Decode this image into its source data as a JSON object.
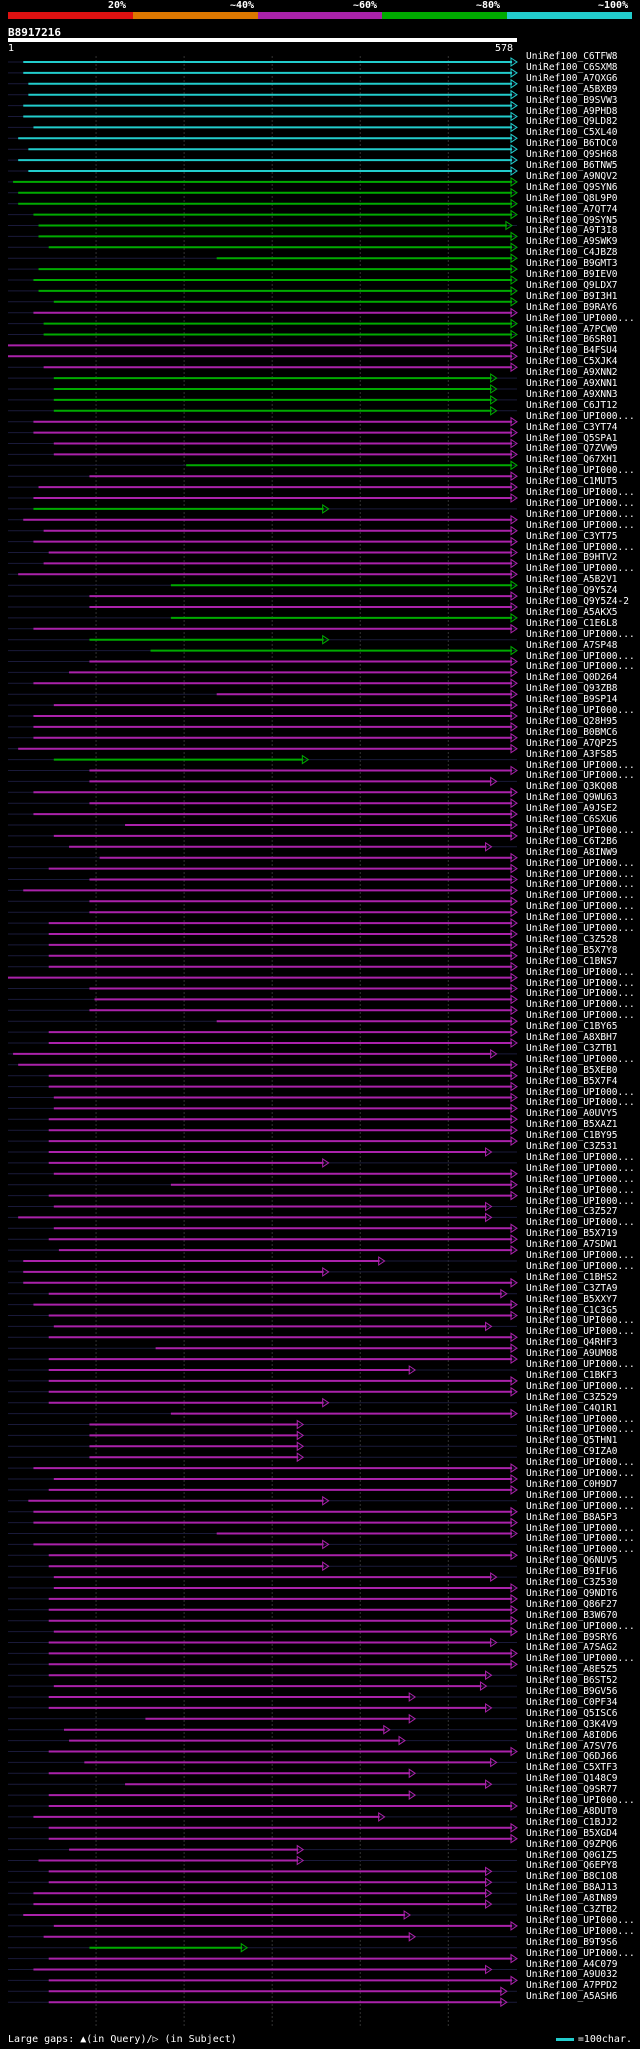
{
  "legend": {
    "labels": [
      "20%",
      "~40%",
      "~60%",
      "~80%",
      "~100%"
    ],
    "colors": [
      "#dd1111",
      "#dd7700",
      "#aa22aa",
      "#00aa00",
      "#22cccc"
    ]
  },
  "query": {
    "name": "B8917216",
    "start": "1",
    "end": "578"
  },
  "scale_len": 578,
  "footer": {
    "left": "Large gaps: ▲(in Query)/▷ (in Subject)",
    "right": "=100char."
  },
  "hit_colors": {
    "cyan": "#22cccc",
    "green": "#00aa00",
    "magenta": "#aa22aa"
  },
  "hits": [
    {
      "name": "UniRef100_C6TFW8",
      "c": "cyan",
      "s": 0.03,
      "e": 1.0
    },
    {
      "name": "UniRef100_C6SXM8",
      "c": "cyan",
      "s": 0.03,
      "e": 1.0
    },
    {
      "name": "UniRef100_A7QXG6",
      "c": "cyan",
      "s": 0.04,
      "e": 1.0
    },
    {
      "name": "UniRef100_A5BXB9",
      "c": "cyan",
      "s": 0.04,
      "e": 1.0
    },
    {
      "name": "UniRef100_B9SVW3",
      "c": "cyan",
      "s": 0.03,
      "e": 1.0
    },
    {
      "name": "UniRef100_A9PHD8",
      "c": "cyan",
      "s": 0.03,
      "e": 1.0
    },
    {
      "name": "UniRef100_Q9LD82",
      "c": "cyan",
      "s": 0.05,
      "e": 1.0
    },
    {
      "name": "UniRef100_C5XL40",
      "c": "cyan",
      "s": 0.02,
      "e": 1.0
    },
    {
      "name": "UniRef100_B6TOC0",
      "c": "cyan",
      "s": 0.04,
      "e": 1.0
    },
    {
      "name": "UniRef100_Q9SH68",
      "c": "cyan",
      "s": 0.02,
      "e": 1.0
    },
    {
      "name": "UniRef100_B6TNW5",
      "c": "cyan",
      "s": 0.04,
      "e": 1.0
    },
    {
      "name": "UniRef100_A9NQV2",
      "c": "green",
      "s": 0.01,
      "e": 1.0
    },
    {
      "name": "UniRef100_Q9SYN6",
      "c": "green",
      "s": 0.02,
      "e": 1.0
    },
    {
      "name": "UniRef100_Q8L9P0",
      "c": "green",
      "s": 0.02,
      "e": 1.0
    },
    {
      "name": "UniRef100_A7QT74",
      "c": "green",
      "s": 0.05,
      "e": 1.0
    },
    {
      "name": "UniRef100_Q9SYN5",
      "c": "green",
      "s": 0.06,
      "e": 0.99
    },
    {
      "name": "UniRef100_A9T3I8",
      "c": "green",
      "s": 0.06,
      "e": 1.0
    },
    {
      "name": "UniRef100_A9SWK9",
      "c": "green",
      "s": 0.08,
      "e": 1.0
    },
    {
      "name": "UniRef100_C4JBZ8",
      "c": "green",
      "s": 0.41,
      "e": 1.0
    },
    {
      "name": "UniRef100_B9GMT3",
      "c": "green",
      "s": 0.06,
      "e": 1.0
    },
    {
      "name": "UniRef100_B9IEV0",
      "c": "green",
      "s": 0.05,
      "e": 1.0
    },
    {
      "name": "UniRef100_Q9LDX7",
      "c": "green",
      "s": 0.06,
      "e": 1.0
    },
    {
      "name": "UniRef100_B9I3H1",
      "c": "green",
      "s": 0.09,
      "e": 1.0
    },
    {
      "name": "UniRef100_B9RAY6",
      "c": "magenta",
      "s": 0.05,
      "e": 1.0
    },
    {
      "name": "UniRef100_UPI000...",
      "c": "green",
      "s": 0.07,
      "e": 1.0
    },
    {
      "name": "UniRef100_A7PCW0",
      "c": "green",
      "s": 0.07,
      "e": 1.0
    },
    {
      "name": "UniRef100_B6SR01",
      "c": "magenta",
      "s": 0.0,
      "e": 1.0
    },
    {
      "name": "UniRef100_B4FSU4",
      "c": "magenta",
      "s": 0.0,
      "e": 1.0
    },
    {
      "name": "UniRef100_C5XJK4",
      "c": "magenta",
      "s": 0.07,
      "e": 1.0
    },
    {
      "name": "UniRef100_A9XNN2",
      "c": "green",
      "s": 0.09,
      "e": 0.96
    },
    {
      "name": "UniRef100_A9XNN1",
      "c": "green",
      "s": 0.09,
      "e": 0.96
    },
    {
      "name": "UniRef100_A9XNN3",
      "c": "green",
      "s": 0.09,
      "e": 0.96
    },
    {
      "name": "UniRef100_C6JT12",
      "c": "green",
      "s": 0.09,
      "e": 0.96
    },
    {
      "name": "UniRef100_UPI000...",
      "c": "magenta",
      "s": 0.05,
      "e": 1.0
    },
    {
      "name": "UniRef100_C3YT74",
      "c": "magenta",
      "s": 0.05,
      "e": 1.0
    },
    {
      "name": "UniRef100_Q5SPA1",
      "c": "magenta",
      "s": 0.09,
      "e": 1.0
    },
    {
      "name": "UniRef100_Q7ZVW9",
      "c": "magenta",
      "s": 0.09,
      "e": 1.0
    },
    {
      "name": "UniRef100_Q67XH1",
      "c": "green",
      "s": 0.35,
      "e": 1.0
    },
    {
      "name": "UniRef100_UPI000...",
      "c": "magenta",
      "s": 0.16,
      "e": 1.0
    },
    {
      "name": "UniRef100_C1MUT5",
      "c": "magenta",
      "s": 0.06,
      "e": 1.0
    },
    {
      "name": "UniRef100_UPI000...",
      "c": "magenta",
      "s": 0.05,
      "e": 1.0
    },
    {
      "name": "UniRef100_UPI000...",
      "c": "green",
      "s": 0.05,
      "e": 0.63
    },
    {
      "name": "UniRef100_UPI000...",
      "c": "magenta",
      "s": 0.03,
      "e": 1.0
    },
    {
      "name": "UniRef100_UPI000...",
      "c": "magenta",
      "s": 0.07,
      "e": 1.0
    },
    {
      "name": "UniRef100_C3YT75",
      "c": "magenta",
      "s": 0.05,
      "e": 1.0
    },
    {
      "name": "UniRef100_UPI000...",
      "c": "magenta",
      "s": 0.08,
      "e": 1.0
    },
    {
      "name": "UniRef100_B9HTV2",
      "c": "magenta",
      "s": 0.07,
      "e": 1.0
    },
    {
      "name": "UniRef100_UPI000...",
      "c": "magenta",
      "s": 0.02,
      "e": 1.0
    },
    {
      "name": "UniRef100_A5B2V1",
      "c": "green",
      "s": 0.32,
      "e": 1.0
    },
    {
      "name": "UniRef100_Q9Y5Z4",
      "c": "magenta",
      "s": 0.16,
      "e": 1.0
    },
    {
      "name": "UniRef100_Q9Y5Z4-2",
      "c": "magenta",
      "s": 0.16,
      "e": 1.0
    },
    {
      "name": "UniRef100_A5AKX5",
      "c": "green",
      "s": 0.32,
      "e": 1.0
    },
    {
      "name": "UniRef100_C1E6L8",
      "c": "magenta",
      "s": 0.05,
      "e": 1.0
    },
    {
      "name": "UniRef100_UPI000...",
      "c": "green",
      "s": 0.16,
      "e": 0.63
    },
    {
      "name": "UniRef100_A7SP48",
      "c": "green",
      "s": 0.28,
      "e": 1.0
    },
    {
      "name": "UniRef100_UPI000...",
      "c": "magenta",
      "s": 0.16,
      "e": 1.0
    },
    {
      "name": "UniRef100_UPI000...",
      "c": "magenta",
      "s": 0.12,
      "e": 1.0
    },
    {
      "name": "UniRef100_Q0D264",
      "c": "magenta",
      "s": 0.05,
      "e": 1.0
    },
    {
      "name": "UniRef100_Q93ZB8",
      "c": "magenta",
      "s": 0.41,
      "e": 1.0
    },
    {
      "name": "UniRef100_B9SP14",
      "c": "magenta",
      "s": 0.09,
      "e": 1.0
    },
    {
      "name": "UniRef100_UPI000...",
      "c": "magenta",
      "s": 0.05,
      "e": 1.0
    },
    {
      "name": "UniRef100_Q28H95",
      "c": "magenta",
      "s": 0.05,
      "e": 1.0
    },
    {
      "name": "UniRef100_B0BMC6",
      "c": "magenta",
      "s": 0.05,
      "e": 1.0
    },
    {
      "name": "UniRef100_A7QP25",
      "c": "magenta",
      "s": 0.02,
      "e": 1.0
    },
    {
      "name": "UniRef100_A3FS85",
      "c": "green",
      "s": 0.09,
      "e": 0.59
    },
    {
      "name": "UniRef100_UPI000...",
      "c": "magenta",
      "s": 0.16,
      "e": 1.0
    },
    {
      "name": "UniRef100_UPI000...",
      "c": "magenta",
      "s": 0.16,
      "e": 0.96
    },
    {
      "name": "UniRef100_Q3KQ08",
      "c": "magenta",
      "s": 0.05,
      "e": 1.0
    },
    {
      "name": "UniRef100_Q9WU63",
      "c": "magenta",
      "s": 0.16,
      "e": 1.0
    },
    {
      "name": "UniRef100_A9JSE2",
      "c": "magenta",
      "s": 0.05,
      "e": 1.0
    },
    {
      "name": "UniRef100_C6SXU6",
      "c": "magenta",
      "s": 0.23,
      "e": 1.0
    },
    {
      "name": "UniRef100_UPI000...",
      "c": "magenta",
      "s": 0.09,
      "e": 1.0
    },
    {
      "name": "UniRef100_C6T2B6",
      "c": "magenta",
      "s": 0.12,
      "e": 0.95
    },
    {
      "name": "UniRef100_A8INW9",
      "c": "magenta",
      "s": 0.18,
      "e": 1.0
    },
    {
      "name": "UniRef100_UPI000...",
      "c": "magenta",
      "s": 0.08,
      "e": 1.0
    },
    {
      "name": "UniRef100_UPI000...",
      "c": "magenta",
      "s": 0.16,
      "e": 1.0
    },
    {
      "name": "UniRef100_UPI000...",
      "c": "magenta",
      "s": 0.03,
      "e": 1.0
    },
    {
      "name": "UniRef100_UPI000...",
      "c": "magenta",
      "s": 0.16,
      "e": 1.0
    },
    {
      "name": "UniRef100_UPI000...",
      "c": "magenta",
      "s": 0.16,
      "e": 1.0
    },
    {
      "name": "UniRef100_UPI000...",
      "c": "magenta",
      "s": 0.08,
      "e": 1.0
    },
    {
      "name": "UniRef100_UPI000...",
      "c": "magenta",
      "s": 0.08,
      "e": 1.0
    },
    {
      "name": "UniRef100_C3Z528",
      "c": "magenta",
      "s": 0.08,
      "e": 1.0
    },
    {
      "name": "UniRef100_B5X7Y8",
      "c": "magenta",
      "s": 0.08,
      "e": 1.0
    },
    {
      "name": "UniRef100_C1BNS7",
      "c": "magenta",
      "s": 0.08,
      "e": 1.0
    },
    {
      "name": "UniRef100_UPI000...",
      "c": "magenta",
      "s": 0.0,
      "e": 1.0
    },
    {
      "name": "UniRef100_UPI000...",
      "c": "magenta",
      "s": 0.16,
      "e": 1.0
    },
    {
      "name": "UniRef100_UPI000...",
      "c": "magenta",
      "s": 0.17,
      "e": 1.0
    },
    {
      "name": "UniRef100_UPI000...",
      "c": "magenta",
      "s": 0.16,
      "e": 1.0
    },
    {
      "name": "UniRef100_UPI000...",
      "c": "magenta",
      "s": 0.41,
      "e": 1.0
    },
    {
      "name": "UniRef100_C1BY65",
      "c": "magenta",
      "s": 0.08,
      "e": 1.0
    },
    {
      "name": "UniRef100_A8XBH7",
      "c": "magenta",
      "s": 0.08,
      "e": 1.0
    },
    {
      "name": "UniRef100_C3ZTB1",
      "c": "magenta",
      "s": 0.01,
      "e": 0.96
    },
    {
      "name": "UniRef100_UPI000...",
      "c": "magenta",
      "s": 0.02,
      "e": 1.0
    },
    {
      "name": "UniRef100_B5XEB0",
      "c": "magenta",
      "s": 0.08,
      "e": 1.0
    },
    {
      "name": "UniRef100_B5X7F4",
      "c": "magenta",
      "s": 0.08,
      "e": 1.0
    },
    {
      "name": "UniRef100_UPI000...",
      "c": "magenta",
      "s": 0.09,
      "e": 1.0
    },
    {
      "name": "UniRef100_UPI000...",
      "c": "magenta",
      "s": 0.09,
      "e": 1.0
    },
    {
      "name": "UniRef100_A0UVY5",
      "c": "magenta",
      "s": 0.08,
      "e": 1.0
    },
    {
      "name": "UniRef100_B5XAZ1",
      "c": "magenta",
      "s": 0.08,
      "e": 1.0
    },
    {
      "name": "UniRef100_C1BY95",
      "c": "magenta",
      "s": 0.08,
      "e": 1.0
    },
    {
      "name": "UniRef100_C3Z531",
      "c": "magenta",
      "s": 0.08,
      "e": 0.95
    },
    {
      "name": "UniRef100_UPI000...",
      "c": "magenta",
      "s": 0.08,
      "e": 0.63
    },
    {
      "name": "UniRef100_UPI000...",
      "c": "magenta",
      "s": 0.09,
      "e": 1.0
    },
    {
      "name": "UniRef100_UPI000...",
      "c": "magenta",
      "s": 0.32,
      "e": 1.0
    },
    {
      "name": "UniRef100_UPI000...",
      "c": "magenta",
      "s": 0.08,
      "e": 1.0
    },
    {
      "name": "UniRef100_UPI000...",
      "c": "magenta",
      "s": 0.09,
      "e": 0.95
    },
    {
      "name": "UniRef100_C3Z527",
      "c": "magenta",
      "s": 0.02,
      "e": 0.95
    },
    {
      "name": "UniRef100_UPI000...",
      "c": "magenta",
      "s": 0.09,
      "e": 1.0
    },
    {
      "name": "UniRef100_B5X719",
      "c": "magenta",
      "s": 0.08,
      "e": 1.0
    },
    {
      "name": "UniRef100_A7SDW1",
      "c": "magenta",
      "s": 0.1,
      "e": 1.0
    },
    {
      "name": "UniRef100_UPI000...",
      "c": "magenta",
      "s": 0.03,
      "e": 0.74
    },
    {
      "name": "UniRef100_UPI000...",
      "c": "magenta",
      "s": 0.03,
      "e": 0.63
    },
    {
      "name": "UniRef100_C1BHS2",
      "c": "magenta",
      "s": 0.03,
      "e": 1.0
    },
    {
      "name": "UniRef100_C3ZTA9",
      "c": "magenta",
      "s": 0.08,
      "e": 0.98
    },
    {
      "name": "UniRef100_B5XXY7",
      "c": "magenta",
      "s": 0.05,
      "e": 1.0
    },
    {
      "name": "UniRef100_C1C3G5",
      "c": "magenta",
      "s": 0.08,
      "e": 1.0
    },
    {
      "name": "UniRef100_UPI000...",
      "c": "magenta",
      "s": 0.09,
      "e": 0.95
    },
    {
      "name": "UniRef100_UPI000...",
      "c": "magenta",
      "s": 0.08,
      "e": 1.0
    },
    {
      "name": "UniRef100_Q4RHF3",
      "c": "magenta",
      "s": 0.29,
      "e": 1.0
    },
    {
      "name": "UniRef100_A9UM08",
      "c": "magenta",
      "s": 0.08,
      "e": 1.0
    },
    {
      "name": "UniRef100_UPI000...",
      "c": "magenta",
      "s": 0.08,
      "e": 0.8
    },
    {
      "name": "UniRef100_C1BKF3",
      "c": "magenta",
      "s": 0.08,
      "e": 1.0
    },
    {
      "name": "UniRef100_UPI000...",
      "c": "magenta",
      "s": 0.08,
      "e": 1.0
    },
    {
      "name": "UniRef100_C3Z529",
      "c": "magenta",
      "s": 0.08,
      "e": 0.63
    },
    {
      "name": "UniRef100_C4Q1R1",
      "c": "magenta",
      "s": 0.32,
      "e": 1.0
    },
    {
      "name": "UniRef100_UPI000...",
      "c": "magenta",
      "s": 0.16,
      "e": 0.58
    },
    {
      "name": "UniRef100_UPI000...",
      "c": "magenta",
      "s": 0.16,
      "e": 0.58
    },
    {
      "name": "UniRef100_Q5THN1",
      "c": "magenta",
      "s": 0.16,
      "e": 0.58
    },
    {
      "name": "UniRef100_C9IZA0",
      "c": "magenta",
      "s": 0.16,
      "e": 0.58
    },
    {
      "name": "UniRef100_UPI000...",
      "c": "magenta",
      "s": 0.05,
      "e": 1.0
    },
    {
      "name": "UniRef100_UPI000...",
      "c": "magenta",
      "s": 0.09,
      "e": 1.0
    },
    {
      "name": "UniRef100_C0H9D7",
      "c": "magenta",
      "s": 0.08,
      "e": 1.0
    },
    {
      "name": "UniRef100_UPI000...",
      "c": "magenta",
      "s": 0.04,
      "e": 0.63
    },
    {
      "name": "UniRef100_UPI000...",
      "c": "magenta",
      "s": 0.05,
      "e": 1.0
    },
    {
      "name": "UniRef100_B8A5P3",
      "c": "magenta",
      "s": 0.05,
      "e": 1.0
    },
    {
      "name": "UniRef100_UPI000...",
      "c": "magenta",
      "s": 0.41,
      "e": 1.0
    },
    {
      "name": "UniRef100_UPI000...",
      "c": "magenta",
      "s": 0.05,
      "e": 0.63
    },
    {
      "name": "UniRef100_UPI000...",
      "c": "magenta",
      "s": 0.08,
      "e": 1.0
    },
    {
      "name": "UniRef100_Q6NUV5",
      "c": "magenta",
      "s": 0.08,
      "e": 0.63
    },
    {
      "name": "UniRef100_B9IFU6",
      "c": "magenta",
      "s": 0.09,
      "e": 0.96
    },
    {
      "name": "UniRef100_C3Z530",
      "c": "magenta",
      "s": 0.09,
      "e": 1.0
    },
    {
      "name": "UniRef100_Q9NDT6",
      "c": "magenta",
      "s": 0.08,
      "e": 1.0
    },
    {
      "name": "UniRef100_Q86F27",
      "c": "magenta",
      "s": 0.08,
      "e": 1.0
    },
    {
      "name": "UniRef100_B3W670",
      "c": "magenta",
      "s": 0.08,
      "e": 1.0
    },
    {
      "name": "UniRef100_UPI000...",
      "c": "magenta",
      "s": 0.09,
      "e": 1.0
    },
    {
      "name": "UniRef100_B9SRY6",
      "c": "magenta",
      "s": 0.08,
      "e": 0.96
    },
    {
      "name": "UniRef100_A7SAG2",
      "c": "magenta",
      "s": 0.08,
      "e": 1.0
    },
    {
      "name": "UniRef100_UPI000...",
      "c": "magenta",
      "s": 0.08,
      "e": 1.0
    },
    {
      "name": "UniRef100_A8E5Z5",
      "c": "magenta",
      "s": 0.08,
      "e": 0.95
    },
    {
      "name": "UniRef100_B6ST52",
      "c": "magenta",
      "s": 0.09,
      "e": 0.94
    },
    {
      "name": "UniRef100_B9GV56",
      "c": "magenta",
      "s": 0.08,
      "e": 0.8
    },
    {
      "name": "UniRef100_C0PF34",
      "c": "magenta",
      "s": 0.08,
      "e": 0.95
    },
    {
      "name": "UniRef100_Q5ISC6",
      "c": "magenta",
      "s": 0.27,
      "e": 0.8
    },
    {
      "name": "UniRef100_Q3K4V9",
      "c": "magenta",
      "s": 0.11,
      "e": 0.75
    },
    {
      "name": "UniRef100_A8I0D6",
      "c": "magenta",
      "s": 0.12,
      "e": 0.78
    },
    {
      "name": "UniRef100_A7SV76",
      "c": "magenta",
      "s": 0.08,
      "e": 1.0
    },
    {
      "name": "UniRef100_Q6DJ66",
      "c": "magenta",
      "s": 0.15,
      "e": 0.96
    },
    {
      "name": "UniRef100_C5XTF3",
      "c": "magenta",
      "s": 0.08,
      "e": 0.8
    },
    {
      "name": "UniRef100_Q148C9",
      "c": "magenta",
      "s": 0.23,
      "e": 0.95
    },
    {
      "name": "UniRef100_Q9SR77",
      "c": "magenta",
      "s": 0.08,
      "e": 0.8
    },
    {
      "name": "UniRef100_UPI000...",
      "c": "magenta",
      "s": 0.08,
      "e": 1.0
    },
    {
      "name": "UniRef100_A8DUT0",
      "c": "magenta",
      "s": 0.05,
      "e": 0.74
    },
    {
      "name": "UniRef100_C1BJJ2",
      "c": "magenta",
      "s": 0.08,
      "e": 1.0
    },
    {
      "name": "UniRef100_B5XGD4",
      "c": "magenta",
      "s": 0.08,
      "e": 1.0
    },
    {
      "name": "UniRef100_Q9ZPQ6",
      "c": "magenta",
      "s": 0.12,
      "e": 0.58
    },
    {
      "name": "UniRef100_Q0G1Z5",
      "c": "magenta",
      "s": 0.06,
      "e": 0.58
    },
    {
      "name": "UniRef100_Q6EPY8",
      "c": "magenta",
      "s": 0.08,
      "e": 0.95
    },
    {
      "name": "UniRef100_B8C1O8",
      "c": "magenta",
      "s": 0.08,
      "e": 0.95
    },
    {
      "name": "UniRef100_B8AJ13",
      "c": "magenta",
      "s": 0.05,
      "e": 0.95
    },
    {
      "name": "UniRef100_A8IN89",
      "c": "magenta",
      "s": 0.05,
      "e": 0.95
    },
    {
      "name": "UniRef100_C3ZTB2",
      "c": "magenta",
      "s": 0.03,
      "e": 0.79
    },
    {
      "name": "UniRef100_UPI000...",
      "c": "magenta",
      "s": 0.09,
      "e": 1.0
    },
    {
      "name": "UniRef100_UPI000...",
      "c": "magenta",
      "s": 0.07,
      "e": 0.8
    },
    {
      "name": "UniRef100_B9T9S6",
      "c": "green",
      "s": 0.16,
      "e": 0.47
    },
    {
      "name": "UniRef100_UPI000...",
      "c": "magenta",
      "s": 0.08,
      "e": 1.0
    },
    {
      "name": "UniRef100_A4C079",
      "c": "magenta",
      "s": 0.05,
      "e": 0.95
    },
    {
      "name": "UniRef100_A9U032",
      "c": "magenta",
      "s": 0.08,
      "e": 1.0
    },
    {
      "name": "UniRef100_A7PPD2",
      "c": "magenta",
      "s": 0.08,
      "e": 0.98
    },
    {
      "name": "UniRef100_A5ASH6",
      "c": "magenta",
      "s": 0.08,
      "e": 0.98
    }
  ]
}
